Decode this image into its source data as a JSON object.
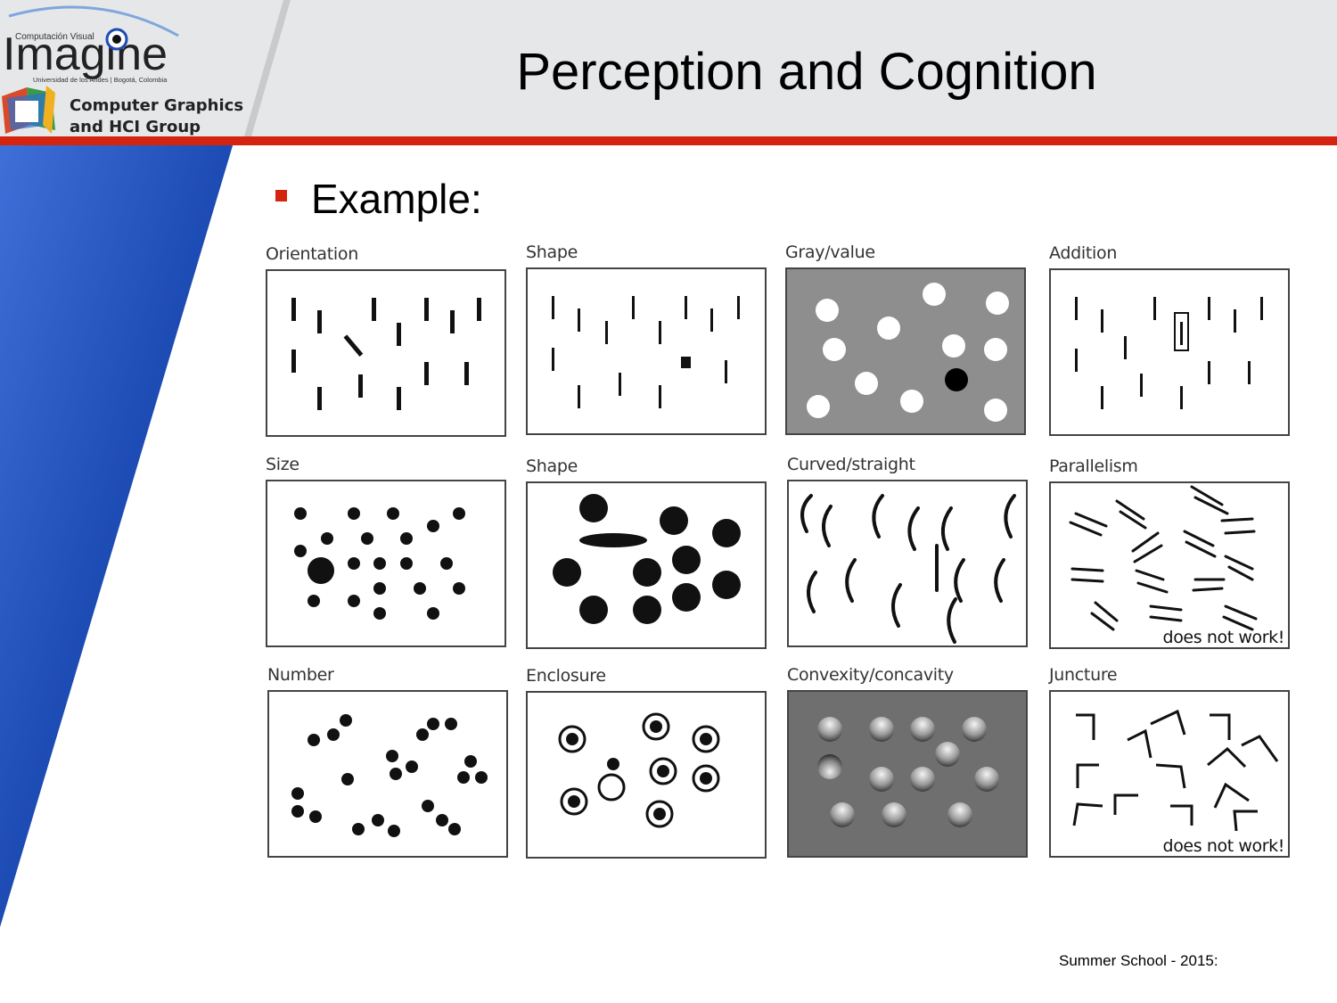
{
  "slide": {
    "title": "Perception and Cognition",
    "bullet": "Example:",
    "footer": "Summer School - 2015:"
  },
  "logo": {
    "top_caption": "Computación Visual",
    "wordmark": "Imagine",
    "sub_caption": "Universidad de los Andes | Bogotá, Colombia",
    "group_line1": "Computer Graphics",
    "group_line2": "and HCI Group"
  },
  "figure": {
    "labels": [
      "Orientation",
      "Shape",
      "Gray/value",
      "Addition",
      "Size",
      "Shape",
      "Curved/straight",
      "Parallelism",
      "Number",
      "Enclosure",
      "Convexity/concavity",
      "Juncture"
    ],
    "notes": {
      "parallelism": "does not work!",
      "juncture": "does not work!"
    }
  },
  "colors": {
    "accent_red": "#d4230f",
    "header_gray": "#e6e7e9",
    "side_blue": "#1f4fb8"
  }
}
